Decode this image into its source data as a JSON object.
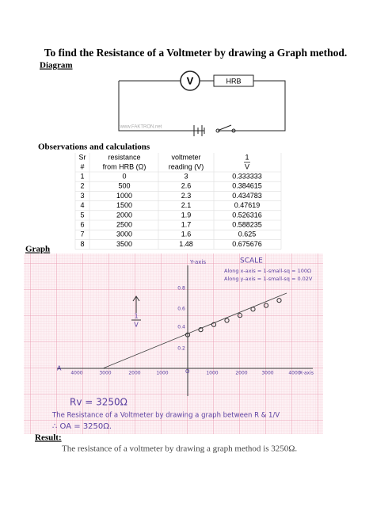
{
  "header": {
    "title": "To find the Resistance of a Voltmeter by drawing a Graph method."
  },
  "diagram": {
    "heading": "Diagram",
    "voltmeter": "V",
    "resistor": "HRB",
    "watermark": "www.FAKTRON.net"
  },
  "observations": {
    "heading": "Observations and calculations",
    "table": {
      "columns": [
        [
          "Sr",
          "#"
        ],
        [
          "resistance",
          "from HRB (Ω)"
        ],
        [
          "voltmeter",
          "reading (V)"
        ],
        [
          "1",
          "V"
        ]
      ],
      "rows": [
        [
          "1",
          "0",
          "3",
          "0.333333"
        ],
        [
          "2",
          "500",
          "2.6",
          "0.384615"
        ],
        [
          "3",
          "1000",
          "2.3",
          "0.434783"
        ],
        [
          "4",
          "1500",
          "2.1",
          "0.47619"
        ],
        [
          "5",
          "2000",
          "1.9",
          "0.526316"
        ],
        [
          "6",
          "2500",
          "1.7",
          "0.588235"
        ],
        [
          "7",
          "3000",
          "1.6",
          "0.625"
        ],
        [
          "8",
          "3500",
          "1.48",
          "0.675676"
        ]
      ]
    }
  },
  "graph": {
    "heading": "Graph",
    "y_axis_label": "Y-axis",
    "x_axis_label": "X-axis",
    "origin": "O",
    "intercept_label": "A",
    "scale_title": "SCALE",
    "scale_x": "Along x-axis = 1-small-sq = 100Ω",
    "scale_y": "Along y-axis = 1-small-sq = 0.02V",
    "axis_quantity": [
      "1",
      "V"
    ],
    "x_tick_labels": [
      "4000",
      "3000",
      "2000",
      "1000",
      "1000",
      "2000",
      "3000",
      "4000"
    ],
    "y_tick_labels": [
      "0.2",
      "0.4",
      "0.6",
      "0.8"
    ],
    "rv": "Rv = 3250Ω",
    "note": "The Resistance of a Voltmeter by drawing a graph between R & 1/V",
    "conclusion": "∴ OA = 3250Ω."
  },
  "result": {
    "heading": "Result:",
    "text": "The resistance of a voltmeter by drawing a graph method is 3250Ω."
  }
}
